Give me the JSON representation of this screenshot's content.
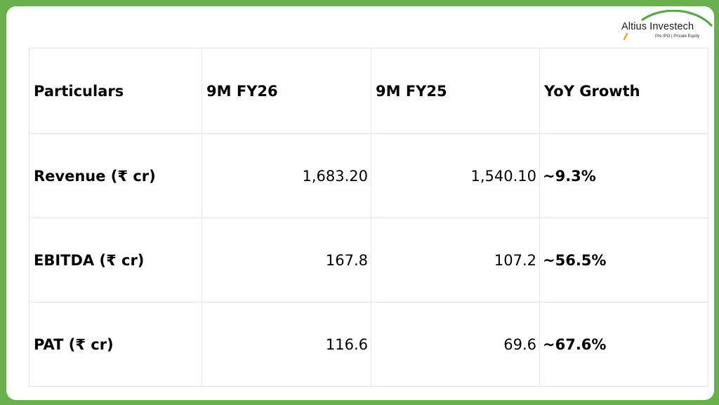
{
  "logo": {
    "name": "Altius Investech",
    "tagline": "Pre IPO | Private Equity",
    "arc_color": "#5aa843",
    "accent_color": "#f0a020"
  },
  "colors": {
    "frame": "#6ab04c",
    "card": "#ffffff",
    "grid": "#e6e6e6"
  },
  "table": {
    "headers": [
      "Particulars",
      "9M FY26",
      "9M FY25",
      "YoY Growth"
    ],
    "rows": [
      {
        "particular": "Revenue (₹ cr)",
        "fy26": "1,683.20",
        "fy25": "1,540.10",
        "growth": "~9.3%"
      },
      {
        "particular": "EBITDA (₹ cr)",
        "fy26": "167.8",
        "fy25": "107.2",
        "growth": "~56.5%"
      },
      {
        "particular": "PAT (₹ cr)",
        "fy26": "116.6",
        "fy25": "69.6",
        "growth": "~67.6%"
      }
    ]
  }
}
